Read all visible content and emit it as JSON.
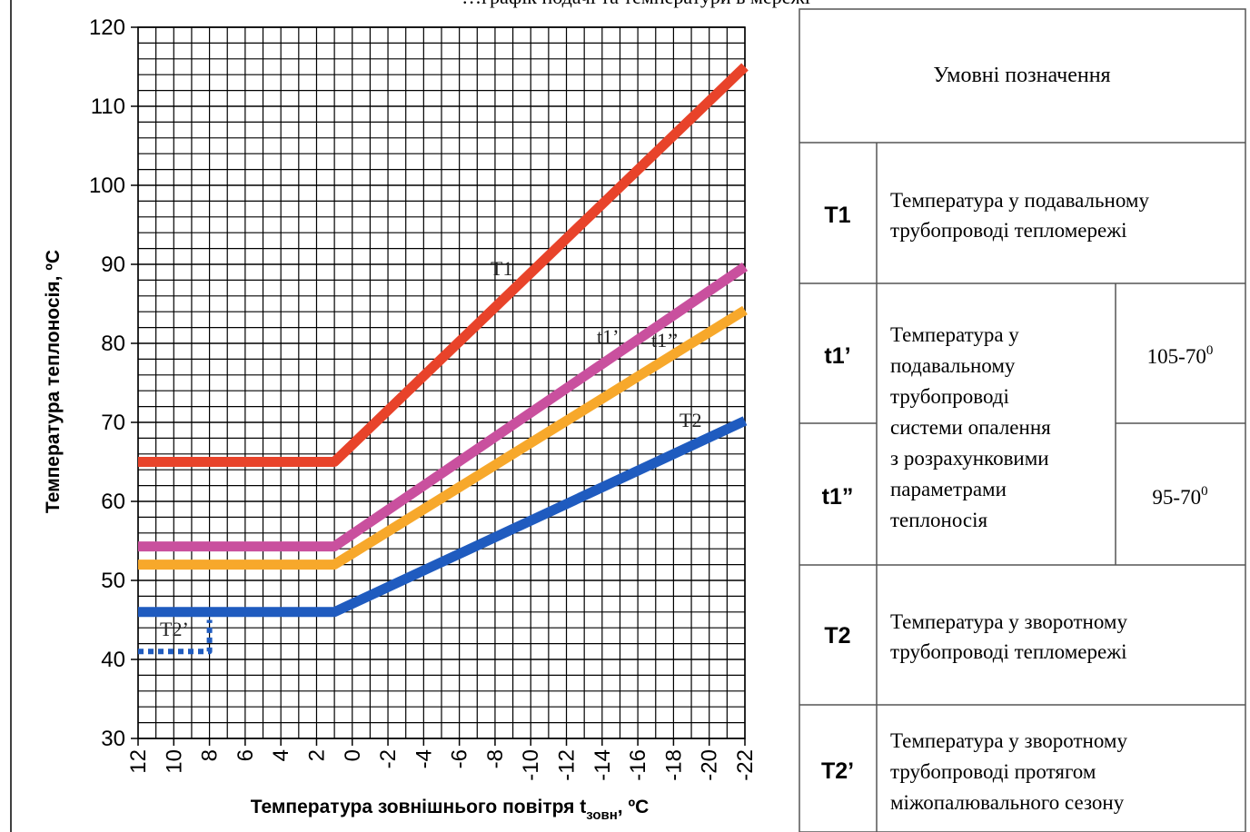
{
  "title": "…графік подачі та температури в мережі",
  "chart_data": {
    "type": "line",
    "xlabel": "Температура зовнішнього повітря t",
    "xlabel_sub": "зовн",
    "xlabel_unit": ", ºC",
    "ylabel": "Температура теплоносія, ºC",
    "xlim": [
      12,
      -22
    ],
    "ylim": [
      30,
      120
    ],
    "x_ticks": [
      "12",
      "10",
      "8",
      "6",
      "4",
      "2",
      "0",
      "-2",
      "-4",
      "-6",
      "-8",
      "-10",
      "-12",
      "-14",
      "-16",
      "-18",
      "-20",
      "-22"
    ],
    "y_ticks": [
      "30",
      "40",
      "50",
      "60",
      "70",
      "80",
      "90",
      "100",
      "110",
      "120"
    ],
    "grid": true,
    "series": [
      {
        "name": "T1",
        "color": "#e8432a",
        "style": "solid",
        "x": [
          12,
          1,
          -22
        ],
        "y": [
          65,
          65,
          115
        ]
      },
      {
        "name": "t1’",
        "color": "#c9509e",
        "style": "solid",
        "x": [
          12,
          1,
          -22
        ],
        "y": [
          54.3,
          54.3,
          89.7
        ]
      },
      {
        "name": "t1’’",
        "color": "#f7a82b",
        "style": "solid",
        "x": [
          12,
          1,
          -22
        ],
        "y": [
          52,
          52,
          84.2
        ]
      },
      {
        "name": "T2",
        "color": "#1f5bbf",
        "style": "solid",
        "x": [
          12,
          1,
          -22
        ],
        "y": [
          46,
          46,
          70.2
        ]
      },
      {
        "name": "T2’",
        "color": "#1f5bbf",
        "style": "dotted",
        "x": [
          12,
          8,
          8
        ],
        "y": [
          41,
          41,
          45
        ]
      }
    ]
  },
  "legend": {
    "heading": "Умовні позначення",
    "rows": [
      {
        "code": "T1",
        "desc": [
          "Температура у подавальному",
          "трубопроводі тепломережі"
        ]
      },
      {
        "code": "t1’",
        "desc": [
          "Температура  у",
          "подавальному",
          "трубопроводі",
          "системи опалення",
          "з розрахунковими",
          "параметрами",
          "теплоносія"
        ],
        "param": "105-70"
      },
      {
        "code": "t1”",
        "param": "95-70"
      },
      {
        "code": "T2",
        "desc": [
          "Температура  у зворотному",
          "трубопроводі тепломережі"
        ]
      },
      {
        "code": "T2’",
        "desc": [
          "Температура у зворотному",
          "трубопроводі протягом",
          "міжопалювального сезону"
        ]
      }
    ],
    "param_sup": "0"
  }
}
